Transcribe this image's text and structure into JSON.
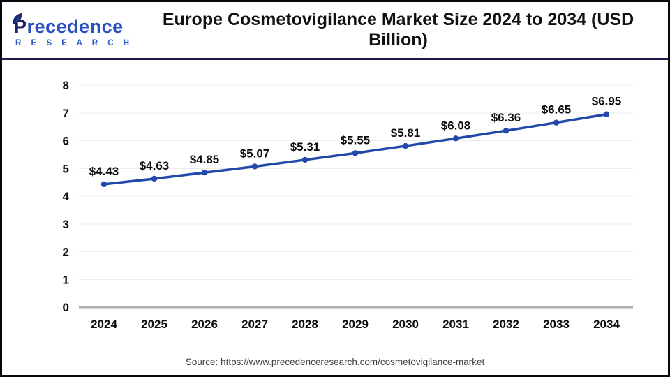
{
  "header": {
    "logo": {
      "brand_p": "P",
      "brand_rest": "recedence",
      "brand_sub": "R E S E A R C H"
    },
    "title": "Europe Cosmetovigilance Market Size 2024 to 2034 (USD Billion)"
  },
  "chart_data": {
    "type": "line",
    "title": "Europe Cosmetovigilance Market Size 2024 to 2034 (USD Billion)",
    "categories": [
      "2024",
      "2025",
      "2026",
      "2027",
      "2028",
      "2029",
      "2030",
      "2031",
      "2032",
      "2033",
      "2034"
    ],
    "values": [
      4.43,
      4.63,
      4.85,
      5.07,
      5.31,
      5.55,
      5.81,
      6.08,
      6.36,
      6.65,
      6.95
    ],
    "point_labels": [
      "$4.43",
      "$4.63",
      "$4.85",
      "$5.07",
      "$5.31",
      "$5.55",
      "$5.81",
      "$6.08",
      "$6.36",
      "$6.65",
      "$6.95"
    ],
    "unit": "USD Billion",
    "xlabel": "",
    "ylabel": "",
    "ylim": [
      0,
      8
    ],
    "y_ticks": [
      0,
      1,
      2,
      3,
      4,
      5,
      6,
      7,
      8
    ],
    "grid": "horizontal",
    "legend": "none"
  },
  "footer": {
    "source": "Source: https://www.precedenceresearch.com/cosmetovigilance-market"
  },
  "colors": {
    "line": "#2049ab",
    "grid": "#ececec",
    "axis": "#b0b0b0",
    "header_rule": "#191a4d",
    "frame_border": "#06060f",
    "label_text": "#0d0d0d",
    "source_text": "#404040",
    "logo_navy": "#1a2464",
    "logo_blue": "#2a4fc0",
    "logo_sub_blue": "#2a55cc"
  }
}
